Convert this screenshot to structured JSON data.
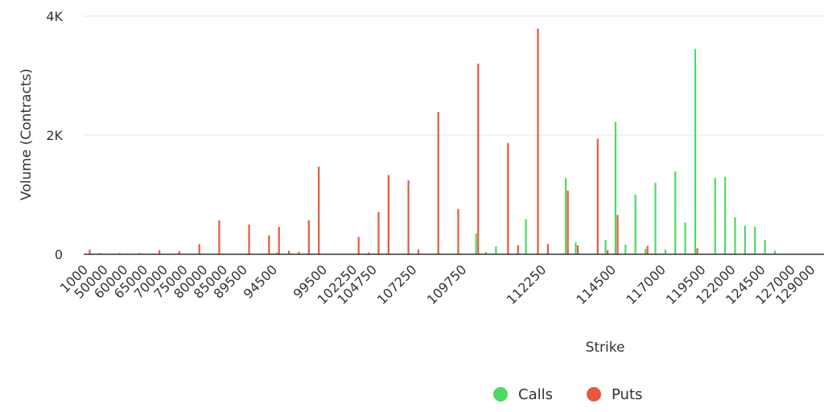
{
  "chart_data": {
    "type": "bar",
    "xlabel": "Strike",
    "ylabel": "Volume (Contracts)",
    "ylim": [
      0,
      4000
    ],
    "yticks": [
      {
        "value": 0,
        "label": "0"
      },
      {
        "value": 2000,
        "label": "2K"
      },
      {
        "value": 4000,
        "label": "4K"
      }
    ],
    "grid": true,
    "legend_position": "bottom",
    "categories": [
      "1000",
      "45000",
      "50000",
      "55000",
      "60000",
      "62000",
      "65000",
      "68000",
      "70000",
      "72000",
      "75000",
      "78000",
      "80000",
      "82000",
      "85000",
      "88000",
      "89500",
      "90000",
      "92000",
      "94500",
      "95000",
      "96000",
      "97000",
      "98000",
      "99500",
      "100000",
      "101000",
      "102250",
      "104000",
      "104750",
      "105500",
      "106000",
      "106500",
      "107250",
      "107750",
      "108500",
      "109000",
      "109500",
      "109750",
      "110000",
      "110500",
      "111000",
      "111250",
      "111500",
      "111750",
      "112000",
      "112250",
      "112500",
      "113000",
      "113500",
      "113750",
      "114000",
      "114250",
      "114500",
      "115000",
      "115500",
      "116000",
      "116500",
      "117000",
      "117500",
      "118000",
      "119000",
      "119500",
      "120000",
      "121000",
      "122000",
      "123000",
      "124000",
      "124500",
      "125000",
      "126000",
      "127000",
      "128000",
      "129000"
    ],
    "tick_labels": [
      "1000",
      "50000",
      "60000",
      "65000",
      "70000",
      "75000",
      "80000",
      "85000",
      "89500",
      "94500",
      "99500",
      "102250",
      "104750",
      "107250",
      "109750",
      "112250",
      "114500",
      "117000",
      "119500",
      "122000",
      "124500",
      "127000",
      "129000"
    ],
    "series": [
      {
        "name": "Calls",
        "color": "#4cd964",
        "values": [
          0,
          0,
          0,
          0,
          0,
          0,
          0,
          0,
          0,
          0,
          0,
          0,
          0,
          0,
          0,
          0,
          0,
          0,
          0,
          30,
          0,
          0,
          0,
          0,
          0,
          0,
          0,
          0,
          0,
          0,
          0,
          0,
          0,
          0,
          0,
          0,
          0,
          0,
          0,
          350,
          40,
          130,
          0,
          0,
          590,
          0,
          0,
          0,
          1280,
          200,
          0,
          0,
          240,
          2220,
          160,
          1000,
          90,
          1200,
          80,
          1390,
          530,
          3450,
          0,
          1280,
          1300,
          620,
          480,
          460,
          240,
          60,
          0,
          0,
          0,
          0
        ]
      },
      {
        "name": "Puts",
        "color": "#e8583f",
        "values": [
          80,
          20,
          0,
          20,
          0,
          20,
          0,
          70,
          0,
          50,
          0,
          170,
          0,
          570,
          0,
          0,
          500,
          0,
          320,
          460,
          60,
          40,
          570,
          1470,
          0,
          0,
          0,
          290,
          30,
          710,
          1330,
          0,
          1240,
          80,
          0,
          2390,
          0,
          760,
          0,
          3200,
          0,
          0,
          1870,
          150,
          0,
          3790,
          170,
          0,
          1070,
          150,
          0,
          1940,
          70,
          660,
          0,
          0,
          140,
          0,
          0,
          0,
          0,
          100,
          0,
          0,
          0,
          0,
          0,
          0,
          0,
          0,
          0,
          0,
          0,
          0
        ]
      }
    ]
  }
}
